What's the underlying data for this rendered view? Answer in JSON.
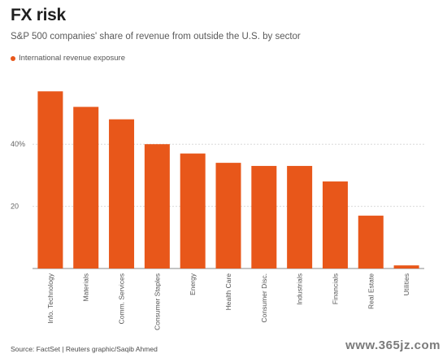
{
  "title": "FX risk",
  "subtitle": "S&P 500 companies' share of revenue from outside the U.S. by sector",
  "footer": "Source: FactSet | Reuters graphic/Saqib Ahmed",
  "watermark": "www.365jz.com",
  "colors": {
    "bar": "#e8571a",
    "grid": "#d9d9d9",
    "axis": "#888888"
  },
  "chart_data": {
    "type": "bar",
    "categories": [
      "Info. Technology",
      "Materials",
      "Comm. Services",
      "Consumer Staples",
      "Energy",
      "Health Care",
      "Consumer Disc.",
      "Industrials",
      "Financials",
      "Real Estate",
      "Utilities"
    ],
    "series": [
      {
        "name": "International revenue exposure",
        "values": [
          57,
          52,
          48,
          40,
          37,
          34,
          33,
          33,
          28,
          17,
          1
        ]
      }
    ],
    "ylim": [
      0,
      60
    ],
    "yticks": [
      20,
      40
    ],
    "ytick_labels": [
      "20",
      "40%"
    ],
    "grid": true,
    "legend": "top-left"
  }
}
